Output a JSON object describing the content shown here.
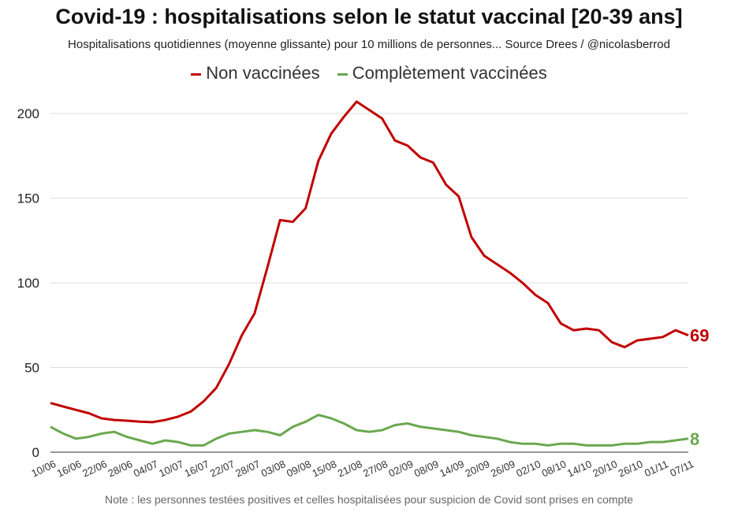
{
  "chart_data": {
    "type": "line",
    "title": "Covid-19 : hospitalisations selon le statut vaccinal [20-39 ans]",
    "subtitle": "Hospitalisations quotidiennes (moyenne glissante) pour 10 millions de personnes... Source Drees / @nicolasberrod",
    "note": "Note : les personnes testées positives et celles hospitalisées pour suspicion de Covid sont prises en compte",
    "ylim": [
      0,
      210
    ],
    "yticks": [
      "0",
      "50",
      "100",
      "150",
      "200"
    ],
    "ytick_values": [
      0,
      50,
      100,
      150,
      200
    ],
    "xticks": [
      "10/06",
      "16/06",
      "22/06",
      "28/06",
      "04/07",
      "10/07",
      "16/07",
      "22/07",
      "28/07",
      "03/08",
      "09/08",
      "15/08",
      "21/08",
      "27/08",
      "02/09",
      "08/09",
      "14/09",
      "20/09",
      "26/09",
      "02/10",
      "08/10",
      "14/10",
      "20/10",
      "26/10",
      "01/11",
      "07/11"
    ],
    "x_days_step": 3,
    "x_total_days": 150,
    "legend_position": "top-center",
    "series": [
      {
        "name": "Non vaccinées",
        "color": "#c00000",
        "end_label": "69",
        "values": [
          29,
          27,
          25,
          23,
          20,
          19,
          18.6,
          18,
          17.7,
          19,
          21,
          24,
          30,
          38,
          52,
          69,
          82,
          109,
          137,
          136,
          144,
          172,
          188,
          198,
          207,
          202,
          197,
          184,
          181,
          174,
          171,
          158,
          151,
          127,
          116,
          111,
          106,
          100,
          93,
          88,
          76,
          72,
          73,
          72,
          65,
          62,
          66,
          67,
          68,
          72,
          69
        ]
      },
      {
        "name": "Complètement vaccinées",
        "color": "#6aa84f",
        "end_label": "8",
        "values": [
          15,
          11,
          8,
          9,
          11,
          12,
          9,
          7,
          5,
          7,
          6,
          4,
          4,
          8,
          11,
          12,
          13,
          12,
          10,
          15,
          18,
          22,
          20,
          17,
          13,
          12,
          13,
          16,
          17,
          15,
          14,
          13,
          12,
          10,
          9,
          8,
          6,
          5,
          5,
          4,
          5,
          5,
          4,
          4,
          4,
          5,
          5,
          6,
          6,
          7,
          8
        ]
      }
    ]
  }
}
